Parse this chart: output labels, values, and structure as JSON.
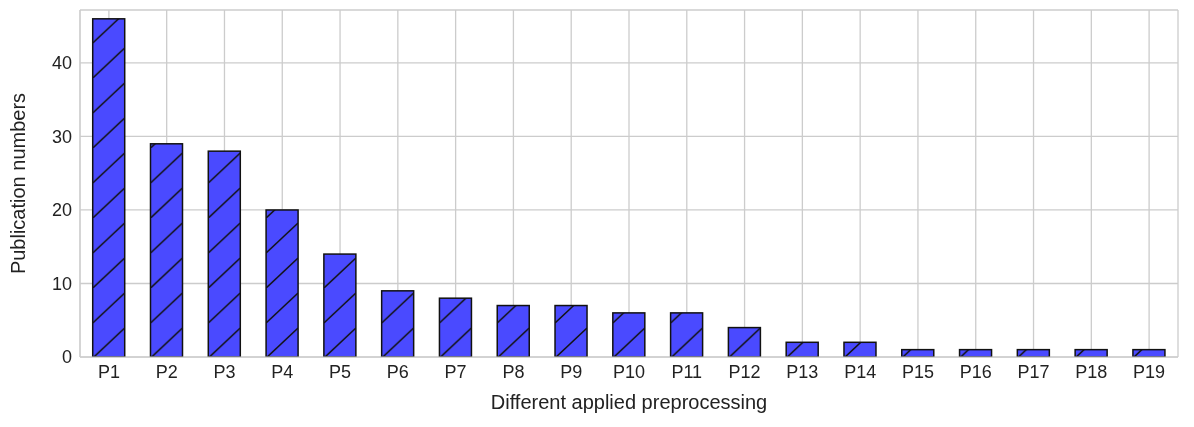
{
  "chart_data": {
    "type": "bar",
    "xlabel": "Different applied preprocessing",
    "ylabel": "Publication numbers",
    "categories": [
      "P1",
      "P2",
      "P3",
      "P4",
      "P5",
      "P6",
      "P7",
      "P8",
      "P9",
      "P10",
      "P11",
      "P12",
      "P13",
      "P14",
      "P15",
      "P16",
      "P17",
      "P18",
      "P19"
    ],
    "values": [
      46,
      29,
      28,
      20,
      14,
      9,
      8,
      7,
      7,
      6,
      6,
      4,
      2,
      2,
      1,
      1,
      1,
      1,
      1
    ],
    "color": "#4a4aff",
    "ylim": [
      0,
      47.2
    ],
    "yticks": [
      0,
      10,
      20,
      30,
      40
    ],
    "grid": true
  }
}
